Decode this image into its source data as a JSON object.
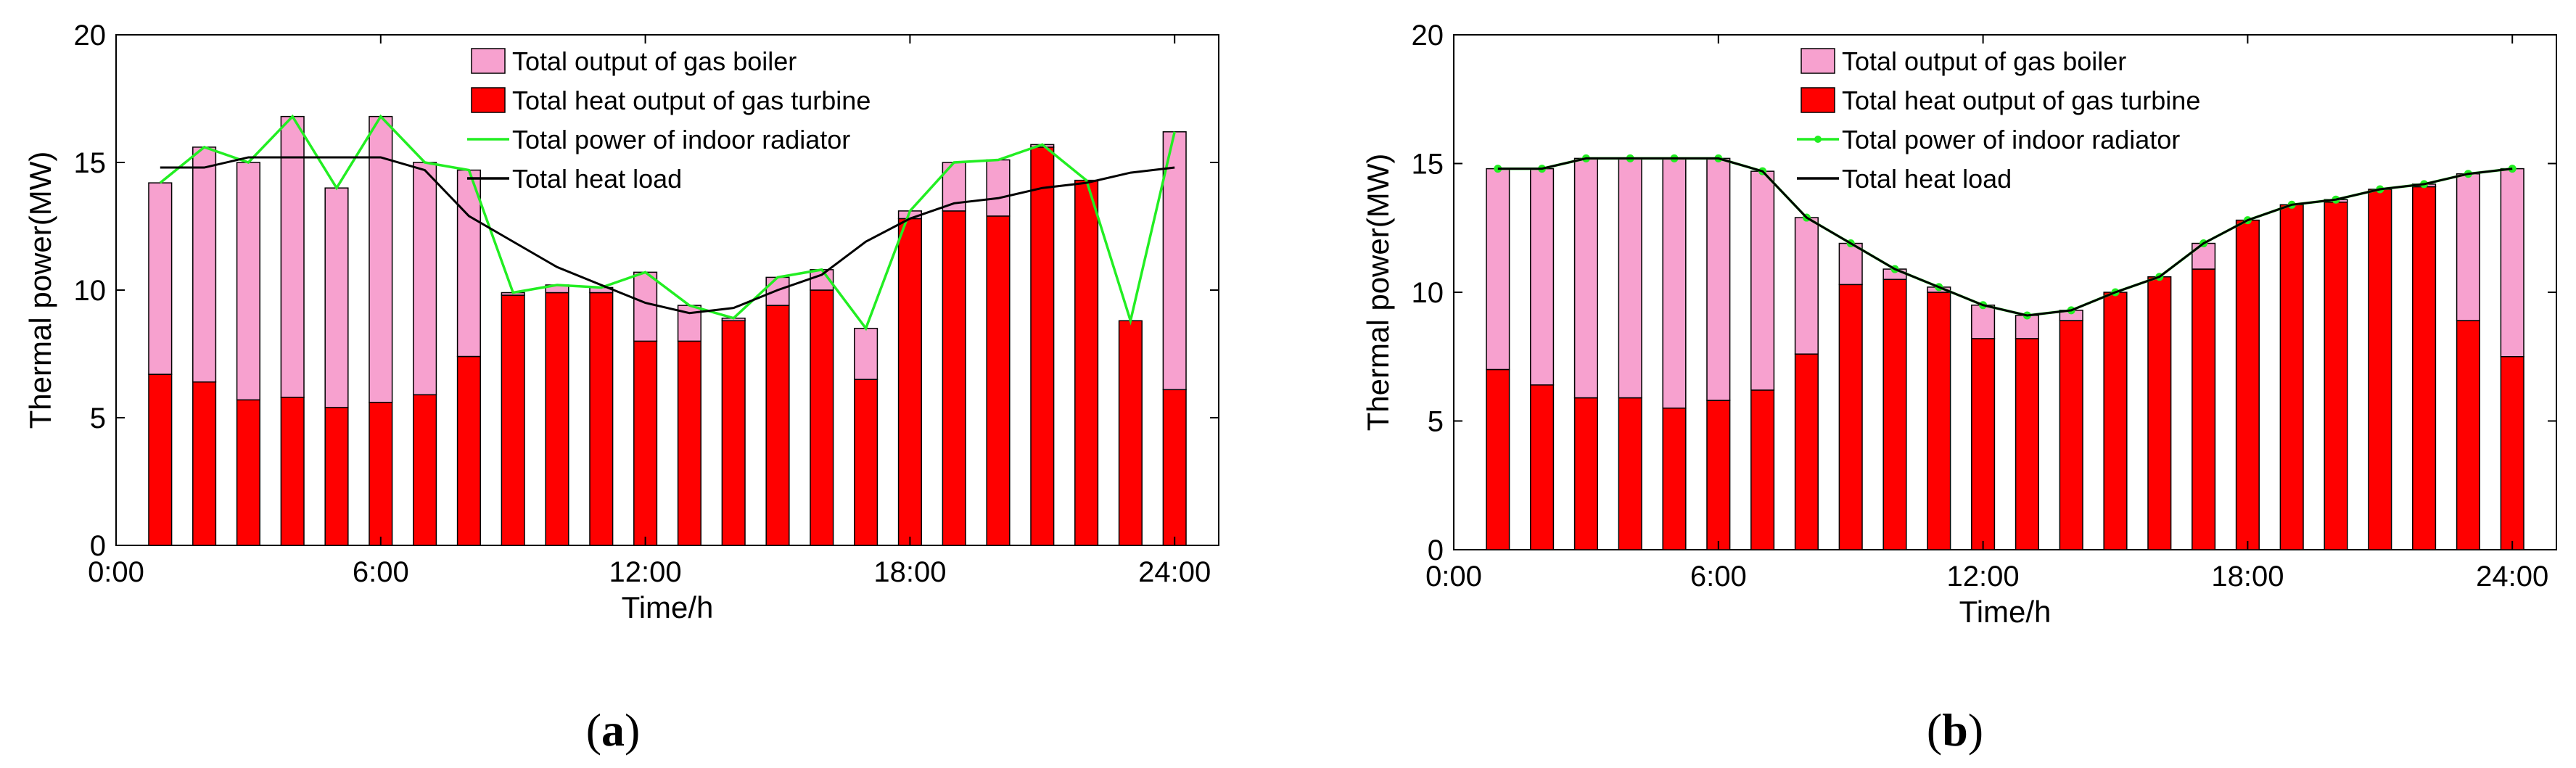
{
  "captions": [
    "(a)",
    "(b)"
  ],
  "chart_data": [
    {
      "type": "bar",
      "stacked": true,
      "title": "",
      "xlabel": "Time/h",
      "ylabel": "Thermal power(MW)",
      "xlim": [
        0,
        25
      ],
      "ylim": [
        0,
        20
      ],
      "xticks": [
        0,
        6,
        12,
        18,
        24
      ],
      "xtick_labels": [
        "0:00",
        "6:00",
        "12:00",
        "18:00",
        "24:00"
      ],
      "yticks": [
        0,
        5,
        10,
        15,
        20
      ],
      "ytick_labels": [
        "0",
        "5",
        "10",
        "15",
        "20"
      ],
      "legend_placement": "top-center",
      "x": [
        1,
        2,
        3,
        4,
        5,
        6,
        7,
        8,
        9,
        10,
        11,
        12,
        13,
        14,
        15,
        16,
        17,
        18,
        19,
        20,
        21,
        22,
        23,
        24
      ],
      "series": [
        {
          "name": "Total heat output of gas turbine",
          "kind": "bar",
          "color": "#ff0000",
          "values": [
            6.7,
            6.4,
            5.7,
            5.8,
            5.4,
            5.6,
            5.9,
            7.4,
            9.8,
            9.9,
            9.9,
            8.0,
            8.0,
            8.8,
            9.4,
            10.0,
            6.5,
            12.8,
            13.1,
            12.9,
            15.6,
            14.3,
            8.8,
            6.1
          ]
        },
        {
          "name": "Total output of gas boiler",
          "kind": "bar",
          "color": "#f7a1cf",
          "values": [
            7.5,
            9.2,
            9.3,
            11.0,
            8.6,
            11.2,
            9.1,
            7.3,
            0.1,
            0.3,
            0.2,
            2.7,
            1.4,
            0.1,
            1.1,
            0.8,
            2.0,
            0.3,
            1.9,
            2.2,
            0.1,
            0.0,
            0.0,
            10.1
          ]
        },
        {
          "name": "Total power of indoor radiator",
          "kind": "line",
          "color": "#22ee22",
          "values": [
            14.2,
            15.6,
            15.0,
            16.8,
            14.0,
            16.8,
            15.0,
            14.7,
            9.9,
            10.2,
            10.1,
            10.7,
            9.4,
            8.9,
            10.5,
            10.8,
            8.5,
            13.1,
            15.0,
            15.1,
            15.7,
            14.3,
            8.8,
            16.2
          ]
        },
        {
          "name": "Total heat load",
          "kind": "line",
          "color": "#000000",
          "values": [
            14.8,
            14.8,
            15.2,
            15.2,
            15.2,
            15.2,
            14.7,
            12.9,
            11.9,
            10.9,
            10.2,
            9.5,
            9.1,
            9.3,
            10.0,
            10.6,
            11.9,
            12.8,
            13.4,
            13.6,
            14.0,
            14.2,
            14.6,
            14.8
          ]
        }
      ]
    },
    {
      "type": "bar",
      "stacked": true,
      "title": "",
      "xlabel": "Time/h",
      "ylabel": "Thermal power(MW)",
      "xlim": [
        0,
        25
      ],
      "ylim": [
        0,
        20
      ],
      "xticks": [
        0,
        6,
        12,
        18,
        24
      ],
      "xtick_labels": [
        "0:00",
        "6:00",
        "12:00",
        "18:00",
        "24:00"
      ],
      "yticks": [
        0,
        5,
        10,
        15,
        20
      ],
      "ytick_labels": [
        "0",
        "5",
        "10",
        "15",
        "20"
      ],
      "legend_placement": "top-center",
      "x": [
        1,
        2,
        3,
        4,
        5,
        6,
        7,
        8,
        9,
        10,
        11,
        12,
        13,
        14,
        15,
        16,
        17,
        18,
        19,
        20,
        21,
        22,
        23,
        24
      ],
      "series": [
        {
          "name": "Total heat output of gas turbine",
          "kind": "bar",
          "color": "#ff0000",
          "values": [
            7.0,
            6.4,
            5.9,
            5.9,
            5.5,
            5.8,
            6.2,
            7.6,
            10.3,
            10.5,
            10.0,
            8.2,
            8.2,
            8.9,
            10.0,
            10.6,
            10.9,
            12.8,
            13.4,
            13.5,
            14.0,
            14.1,
            8.9,
            7.5
          ]
        },
        {
          "name": "Total output of gas boiler",
          "kind": "bar",
          "color": "#f7a1cf",
          "values": [
            7.8,
            8.4,
            9.3,
            9.3,
            9.7,
            9.4,
            8.5,
            5.3,
            1.6,
            0.4,
            0.2,
            1.3,
            0.9,
            0.4,
            0.0,
            0.0,
            1.0,
            0.0,
            0.0,
            0.1,
            0.0,
            0.1,
            5.7,
            7.3
          ]
        },
        {
          "name": "Total power of indoor radiator",
          "kind": "line",
          "color": "#22ee22",
          "markers": true,
          "values": [
            14.8,
            14.8,
            15.2,
            15.2,
            15.2,
            15.2,
            14.7,
            12.9,
            11.9,
            10.9,
            10.2,
            9.5,
            9.1,
            9.3,
            10.0,
            10.6,
            11.9,
            12.8,
            13.4,
            13.6,
            14.0,
            14.2,
            14.6,
            14.8
          ]
        },
        {
          "name": "Total heat load",
          "kind": "line",
          "color": "#000000",
          "values": [
            14.8,
            14.8,
            15.2,
            15.2,
            15.2,
            15.2,
            14.7,
            12.9,
            11.9,
            10.9,
            10.2,
            9.5,
            9.1,
            9.3,
            10.0,
            10.6,
            11.9,
            12.8,
            13.4,
            13.6,
            14.0,
            14.2,
            14.6,
            14.8
          ]
        }
      ]
    }
  ]
}
